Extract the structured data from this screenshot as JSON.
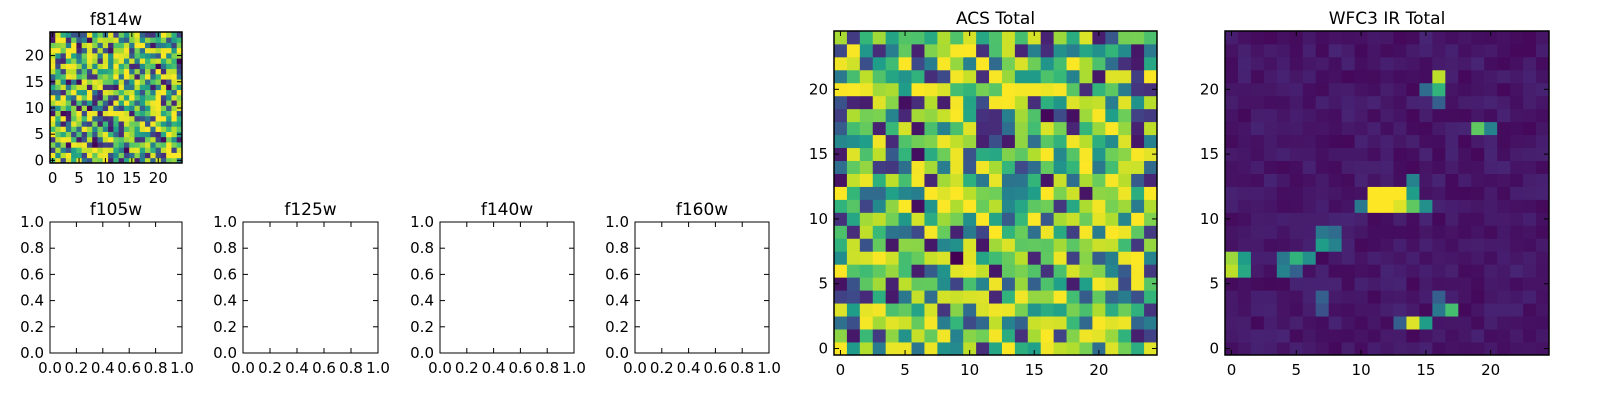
{
  "figure": {
    "background": "#ffffff",
    "colormap": "viridis"
  },
  "chart_data": [
    {
      "id": "f814w",
      "type": "heatmap",
      "title": "f814w",
      "grid_size": 25,
      "pattern": "noise",
      "seed": 814,
      "xticks": [
        "0",
        "5",
        "10",
        "15",
        "20"
      ],
      "yticks": [
        "0",
        "5",
        "10",
        "15",
        "20"
      ],
      "xlim": [
        -0.5,
        24.5
      ],
      "ylim": [
        -0.5,
        24.5
      ]
    },
    {
      "id": "f105w",
      "type": "empty",
      "title": "f105w",
      "xticks": [
        "0.0",
        "0.2",
        "0.4",
        "0.6",
        "0.8",
        "1.0"
      ],
      "yticks": [
        "0.0",
        "0.2",
        "0.4",
        "0.6",
        "0.8",
        "1.0"
      ],
      "xlim": [
        0,
        1
      ],
      "ylim": [
        0,
        1
      ]
    },
    {
      "id": "f125w",
      "type": "empty",
      "title": "f125w",
      "xticks": [
        "0.0",
        "0.2",
        "0.4",
        "0.6",
        "0.8",
        "1.0"
      ],
      "yticks": [
        "0.0",
        "0.2",
        "0.4",
        "0.6",
        "0.8",
        "1.0"
      ],
      "xlim": [
        0,
        1
      ],
      "ylim": [
        0,
        1
      ]
    },
    {
      "id": "f140w",
      "type": "empty",
      "title": "f140w",
      "xticks": [
        "0.0",
        "0.2",
        "0.4",
        "0.6",
        "0.8",
        "1.0"
      ],
      "yticks": [
        "0.0",
        "0.2",
        "0.4",
        "0.6",
        "0.8",
        "1.0"
      ],
      "xlim": [
        0,
        1
      ],
      "ylim": [
        0,
        1
      ]
    },
    {
      "id": "f160w",
      "type": "empty",
      "title": "f160w",
      "xticks": [
        "0.0",
        "0.2",
        "0.4",
        "0.6",
        "0.8",
        "1.0"
      ],
      "yticks": [
        "0.0",
        "0.2",
        "0.4",
        "0.6",
        "0.8",
        "1.0"
      ],
      "xlim": [
        0,
        1
      ],
      "ylim": [
        0,
        1
      ]
    },
    {
      "id": "acs-total",
      "type": "heatmap",
      "title": "ACS Total",
      "grid_size": 25,
      "pattern": "noise",
      "seed": 2024,
      "xticks": [
        "0",
        "5",
        "10",
        "15",
        "20"
      ],
      "yticks": [
        "0",
        "5",
        "10",
        "15",
        "20"
      ],
      "xlim": [
        -0.5,
        24.5
      ],
      "ylim": [
        -0.5,
        24.5
      ]
    },
    {
      "id": "wfc3-ir-total",
      "type": "heatmap",
      "title": "WFC3 IR Total",
      "grid_size": 25,
      "pattern": "background",
      "seed": 3,
      "background_range": [
        0.02,
        0.1
      ],
      "hot_pixels": [
        {
          "x": 0,
          "y": 7,
          "v": 0.85
        },
        {
          "x": 0,
          "y": 6,
          "v": 0.9
        },
        {
          "x": 1,
          "y": 7,
          "v": 0.55
        },
        {
          "x": 1,
          "y": 6,
          "v": 0.6
        },
        {
          "x": 4,
          "y": 6,
          "v": 0.45
        },
        {
          "x": 4,
          "y": 7,
          "v": 0.4
        },
        {
          "x": 5,
          "y": 7,
          "v": 0.65
        },
        {
          "x": 6,
          "y": 7,
          "v": 0.5
        },
        {
          "x": 5,
          "y": 6,
          "v": 0.3
        },
        {
          "x": 7,
          "y": 8,
          "v": 0.55
        },
        {
          "x": 8,
          "y": 8,
          "v": 0.45
        },
        {
          "x": 7,
          "y": 9,
          "v": 0.4
        },
        {
          "x": 8,
          "y": 9,
          "v": 0.35
        },
        {
          "x": 7,
          "y": 4,
          "v": 0.3
        },
        {
          "x": 7,
          "y": 3,
          "v": 0.25
        },
        {
          "x": 10,
          "y": 11,
          "v": 0.4
        },
        {
          "x": 11,
          "y": 12,
          "v": 1.0
        },
        {
          "x": 12,
          "y": 12,
          "v": 1.0
        },
        {
          "x": 13,
          "y": 12,
          "v": 1.0
        },
        {
          "x": 11,
          "y": 11,
          "v": 1.0
        },
        {
          "x": 12,
          "y": 11,
          "v": 1.0
        },
        {
          "x": 13,
          "y": 11,
          "v": 0.95
        },
        {
          "x": 14,
          "y": 12,
          "v": 0.55
        },
        {
          "x": 14,
          "y": 11,
          "v": 0.75
        },
        {
          "x": 15,
          "y": 11,
          "v": 0.5
        },
        {
          "x": 14,
          "y": 13,
          "v": 0.45
        },
        {
          "x": 16,
          "y": 21,
          "v": 0.9
        },
        {
          "x": 16,
          "y": 20,
          "v": 0.65
        },
        {
          "x": 15,
          "y": 20,
          "v": 0.35
        },
        {
          "x": 16,
          "y": 19,
          "v": 0.3
        },
        {
          "x": 19,
          "y": 17,
          "v": 0.75
        },
        {
          "x": 20,
          "y": 17,
          "v": 0.45
        },
        {
          "x": 14,
          "y": 2,
          "v": 0.95
        },
        {
          "x": 15,
          "y": 2,
          "v": 0.55
        },
        {
          "x": 16,
          "y": 3,
          "v": 0.4
        },
        {
          "x": 17,
          "y": 3,
          "v": 0.7
        },
        {
          "x": 16,
          "y": 4,
          "v": 0.3
        },
        {
          "x": 13,
          "y": 2,
          "v": 0.3
        }
      ],
      "xticks": [
        "0",
        "5",
        "10",
        "15",
        "20"
      ],
      "yticks": [
        "0",
        "5",
        "10",
        "15",
        "20"
      ],
      "xlim": [
        -0.5,
        24.5
      ],
      "ylim": [
        -0.5,
        24.5
      ]
    }
  ]
}
